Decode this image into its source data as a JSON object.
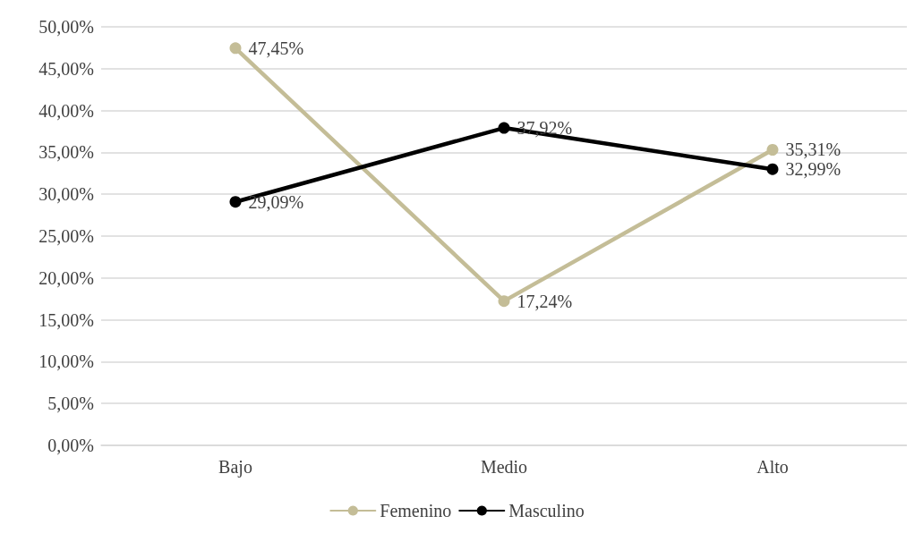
{
  "chart_data": {
    "type": "line",
    "categories": [
      "Bajo",
      "Medio",
      "Alto"
    ],
    "series": [
      {
        "name": "Femenino",
        "color": "#c4bd97",
        "values": [
          47.45,
          17.24,
          35.31
        ],
        "value_labels": [
          "47,45%",
          "17,24%",
          "35,31%"
        ]
      },
      {
        "name": "Masculino",
        "color": "#000000",
        "values": [
          29.09,
          37.92,
          32.99
        ],
        "value_labels": [
          "29,09%",
          "37,92%",
          "32,99%"
        ]
      }
    ],
    "ylim": [
      0,
      50
    ],
    "yticks": [
      {
        "value": 0,
        "label": "0,00%"
      },
      {
        "value": 5,
        "label": "5,00%"
      },
      {
        "value": 10,
        "label": "10,00%"
      },
      {
        "value": 15,
        "label": "15,00%"
      },
      {
        "value": 20,
        "label": "20,00%"
      },
      {
        "value": 25,
        "label": "25,00%"
      },
      {
        "value": 30,
        "label": "30,00%"
      },
      {
        "value": 35,
        "label": "35,00%"
      },
      {
        "value": 40,
        "label": "40,00%"
      },
      {
        "value": 45,
        "label": "45,00%"
      },
      {
        "value": 50,
        "label": "50,00%"
      }
    ],
    "grid": "y",
    "legend": "bottom",
    "marker": "circle",
    "line_style": "solid"
  }
}
